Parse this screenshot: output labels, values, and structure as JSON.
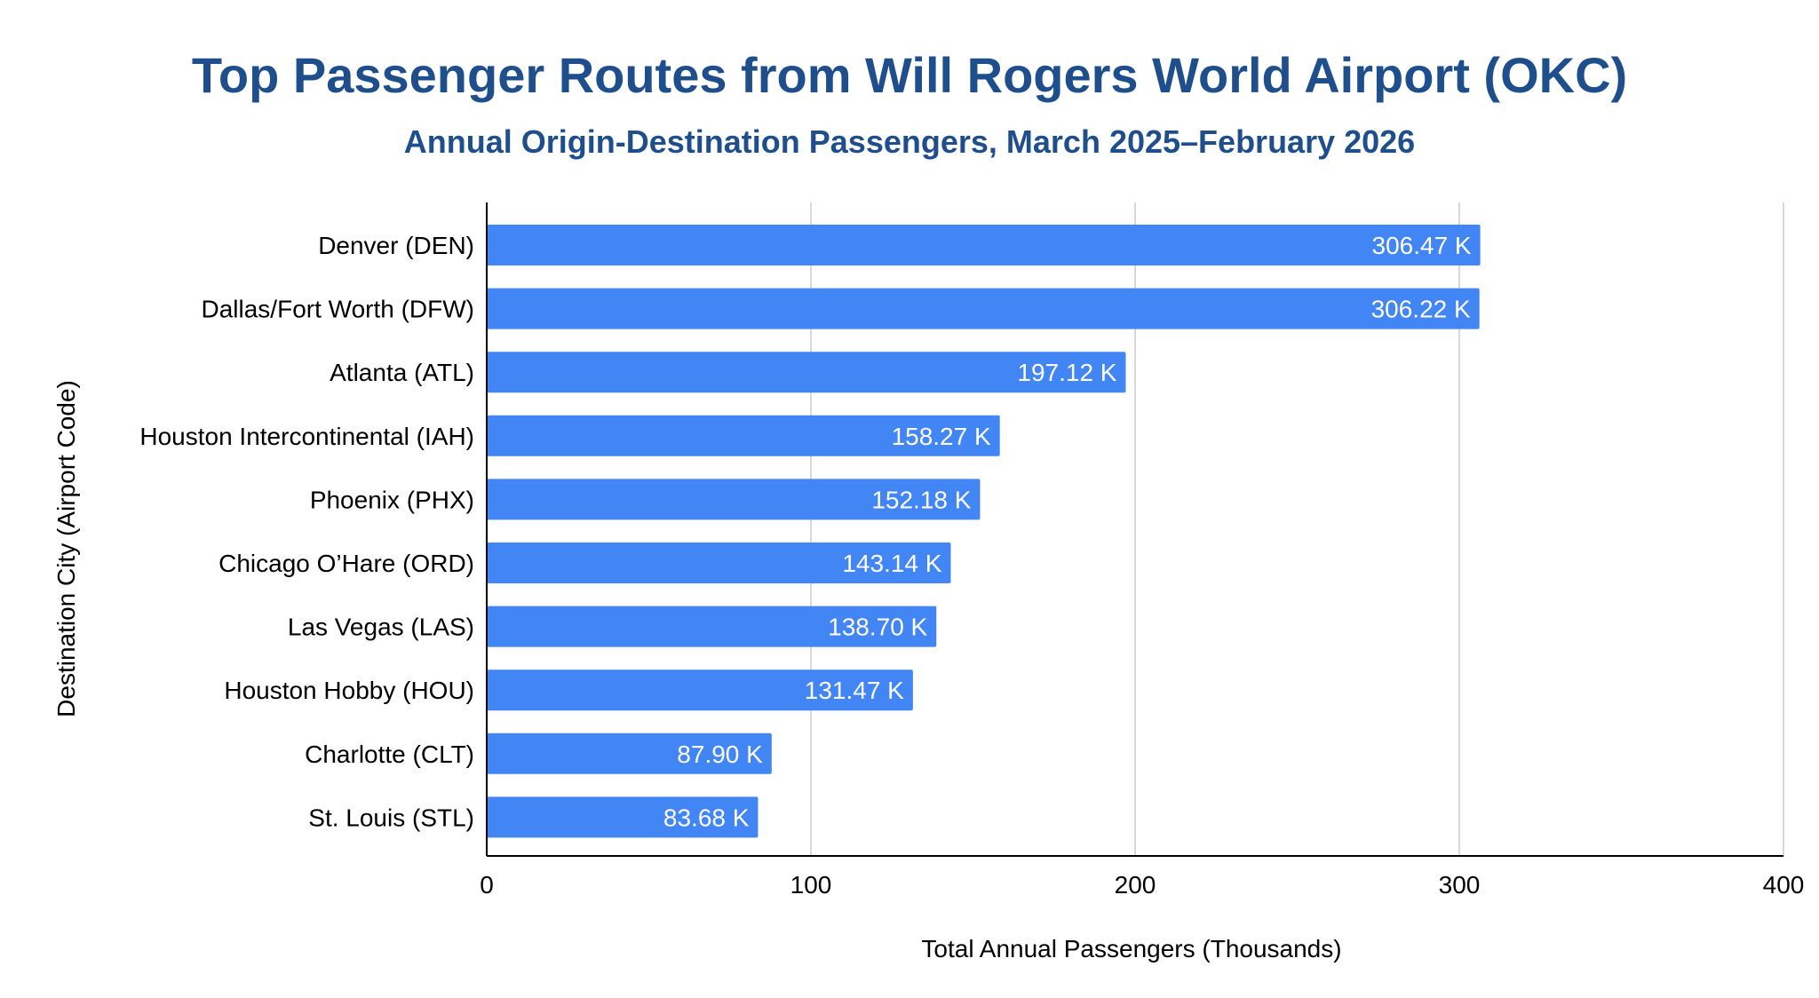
{
  "chart_data": {
    "type": "bar",
    "orientation": "horizontal",
    "title": "Top Passenger Routes from Will Rogers World Airport (OKC)",
    "subtitle": "Annual Origin-Destination Passengers, March 2025–February 2026",
    "xlabel": "Total Annual Passengers (Thousands)",
    "ylabel": "Destination City (Airport Code)",
    "xlim": [
      0,
      400
    ],
    "xticks": [
      "0",
      "100",
      "200",
      "300",
      "400"
    ],
    "grid": true,
    "legend": "none",
    "categories": [
      "Denver (DEN)",
      "Dallas/Fort Worth (DFW)",
      "Atlanta (ATL)",
      "Houston Intercontinental (IAH)",
      "Phoenix (PHX)",
      "Chicago O’Hare (ORD)",
      "Las Vegas (LAS)",
      "Houston Hobby (HOU)",
      "Charlotte (CLT)",
      "St. Louis (STL)"
    ],
    "values": [
      306.47,
      306.22,
      197.12,
      158.27,
      152.18,
      143.14,
      138.7,
      131.47,
      87.9,
      83.68
    ],
    "data_labels": [
      "306.47 K",
      "306.22 K",
      "197.12 K",
      "158.27 K",
      "152.18 K",
      "143.14 K",
      "138.70 K",
      "131.47 K",
      "87.90 K",
      "83.68 K"
    ],
    "colors": {
      "bar": "#4285f4",
      "title": "#1f4e8c",
      "gridline": "#cccccc",
      "axis": "#000000"
    }
  }
}
